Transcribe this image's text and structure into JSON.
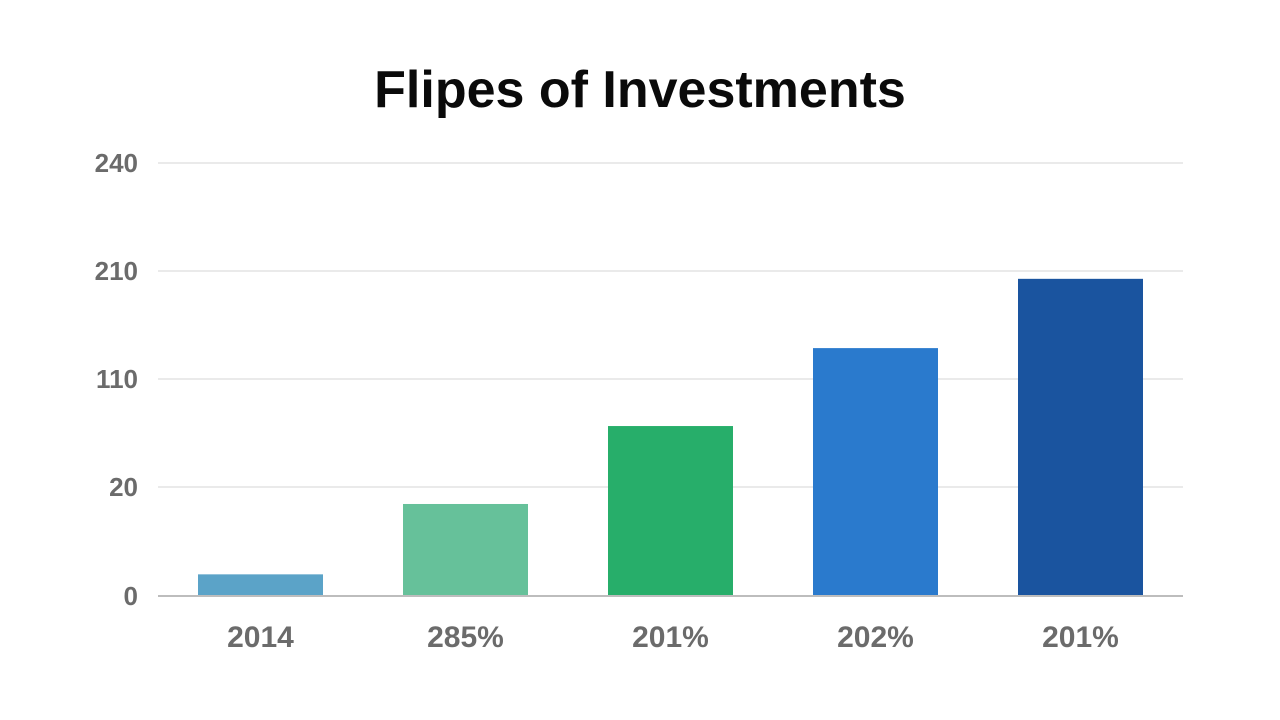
{
  "chart_data": {
    "type": "bar",
    "title": "Flipes of Investments",
    "xlabel": "",
    "ylabel": "",
    "categories": [
      "2014",
      "285%",
      "201%",
      "202%",
      "201%"
    ],
    "values": [
      20,
      85,
      157,
      229,
      293
    ],
    "y_ticks": [
      "0",
      "20",
      "110",
      "210",
      "240"
    ],
    "ylim": [
      0,
      400
    ],
    "grid": true,
    "colors": [
      "#5ba3c8",
      "#66c19a",
      "#27ae6a",
      "#2a7acd",
      "#1a549f"
    ]
  }
}
